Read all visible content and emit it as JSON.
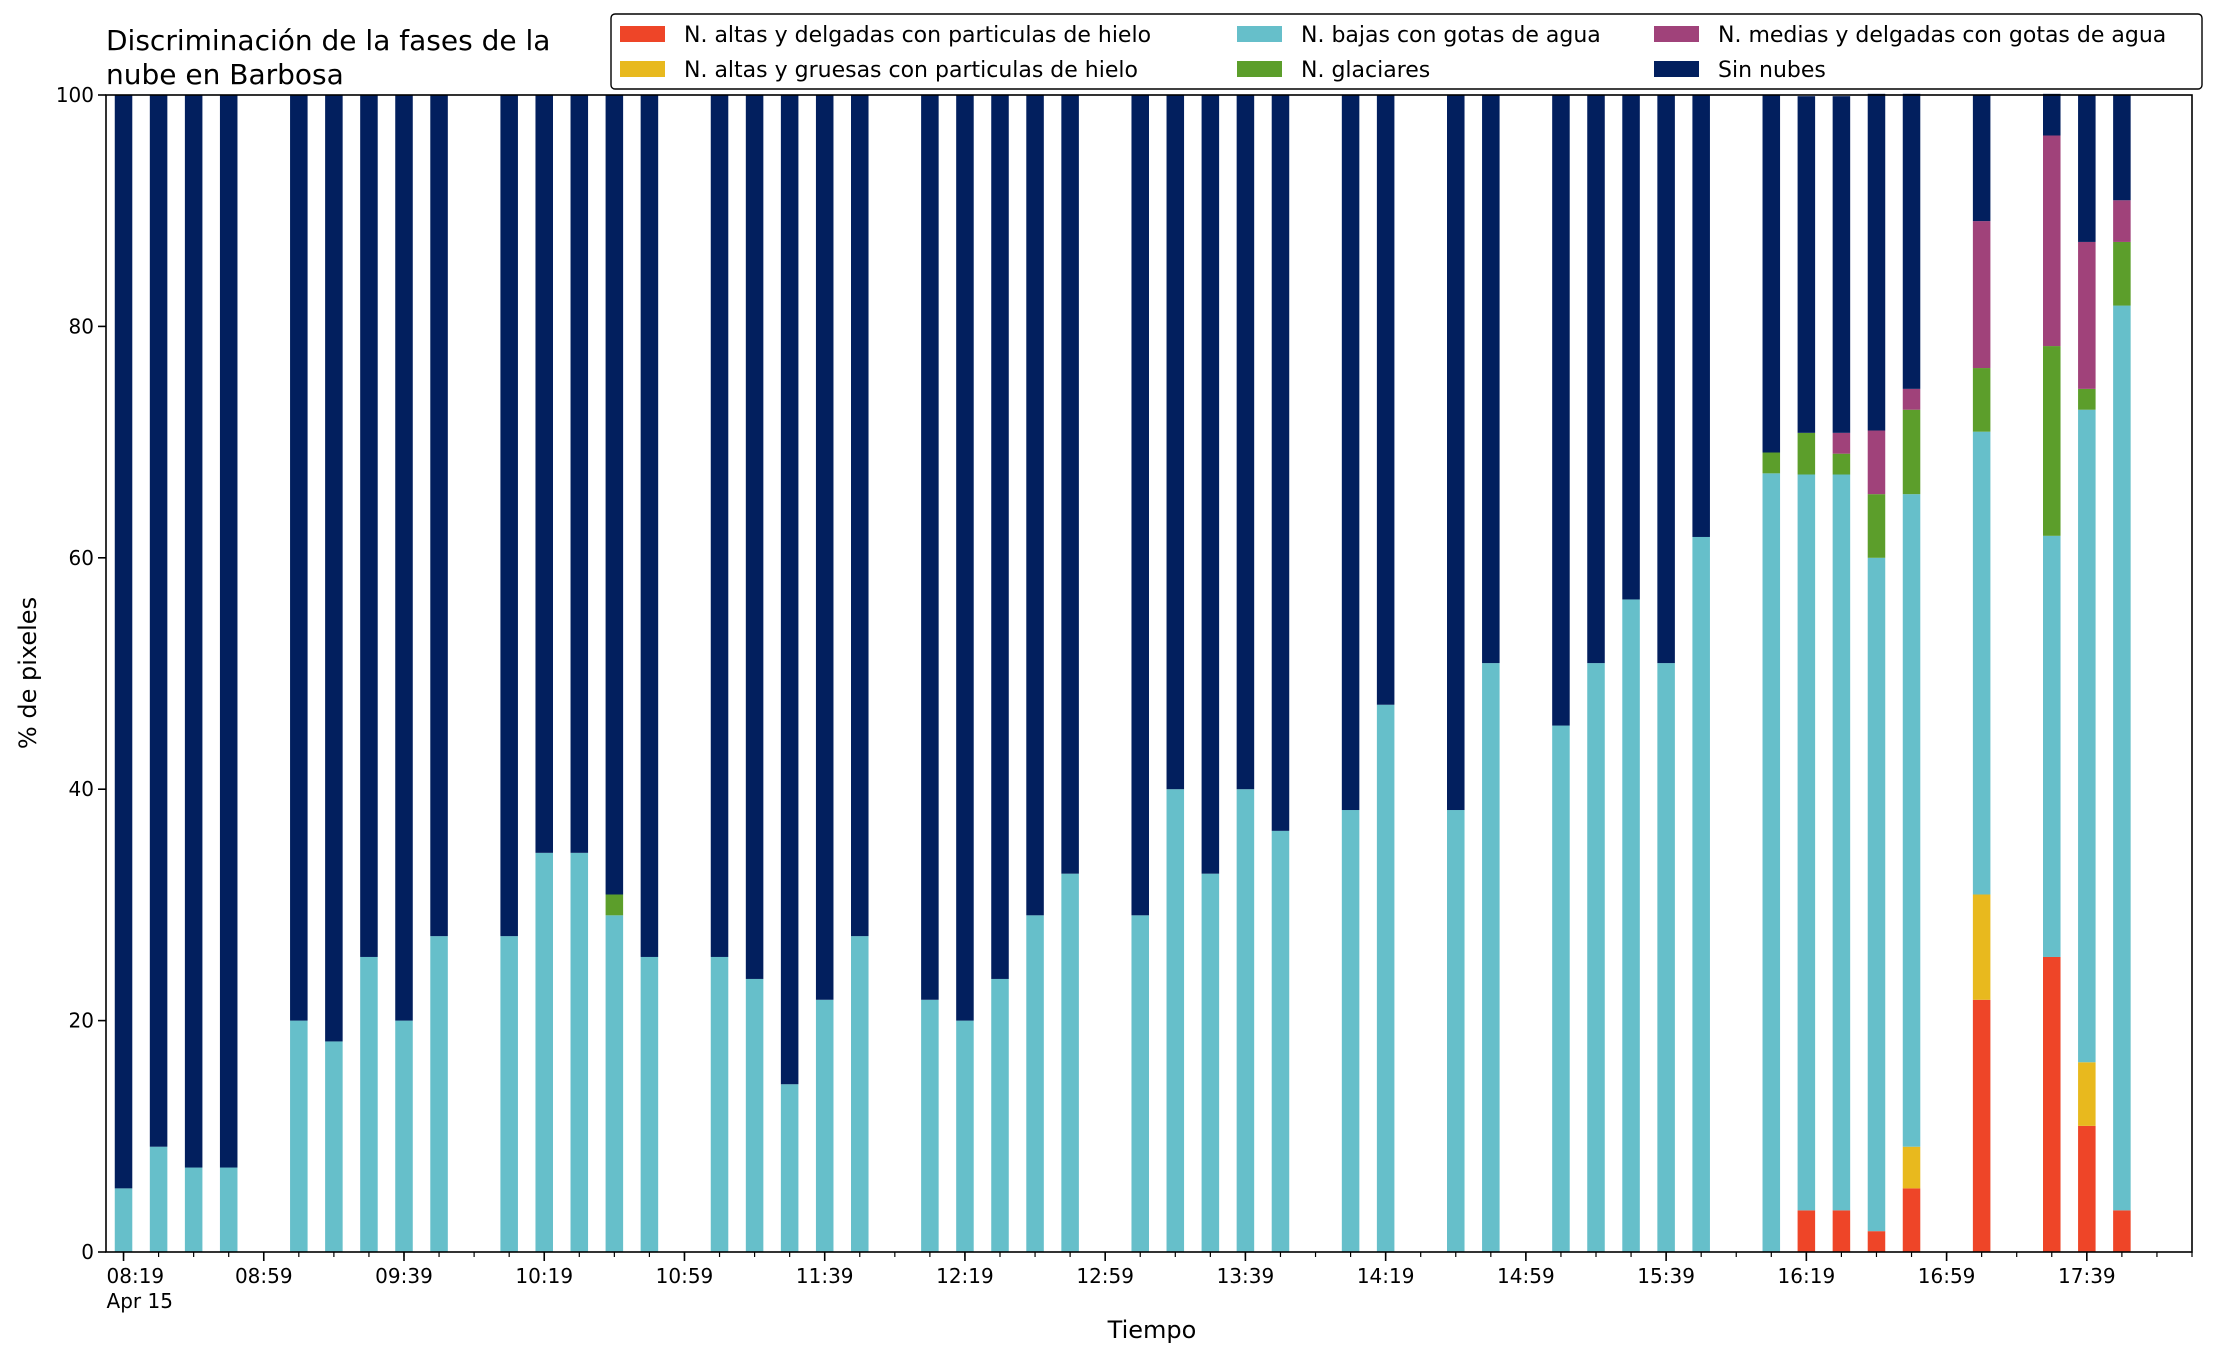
{
  "chart_data": {
    "type": "bar",
    "stacked": true,
    "title_lines": [
      "Discriminación de la fases de la",
      "nube en Barbosa"
    ],
    "xlabel": "Tiempo",
    "ylabel": "% de pixeles",
    "ylim": [
      0,
      100
    ],
    "yticks": [
      "0",
      "20",
      "40",
      "60",
      "80",
      "100"
    ],
    "x_unit": "minutes after 08:19",
    "xlim": [
      -5,
      590
    ],
    "xticks": [
      {
        "t": 0,
        "label": "08:19",
        "sublabel": "Apr 15"
      },
      {
        "t": 40,
        "label": "08:59"
      },
      {
        "t": 80,
        "label": "09:39"
      },
      {
        "t": 120,
        "label": "10:19"
      },
      {
        "t": 160,
        "label": "10:59"
      },
      {
        "t": 200,
        "label": "11:39"
      },
      {
        "t": 240,
        "label": "12:19"
      },
      {
        "t": 280,
        "label": "12:59"
      },
      {
        "t": 320,
        "label": "13:39"
      },
      {
        "t": 360,
        "label": "14:19"
      },
      {
        "t": 400,
        "label": "14:59"
      },
      {
        "t": 440,
        "label": "15:39"
      },
      {
        "t": 480,
        "label": "16:19"
      },
      {
        "t": 520,
        "label": "16:59"
      },
      {
        "t": 560,
        "label": "17:39"
      }
    ],
    "minor_tick_step": 10,
    "bar_width": 5,
    "legend": {
      "placement": "top-right",
      "columns": 3
    },
    "x": [
      0,
      10,
      20,
      30,
      50,
      60,
      70,
      80,
      90,
      110,
      120,
      130,
      140,
      150,
      170,
      180,
      190,
      200,
      210,
      230,
      240,
      250,
      260,
      270,
      290,
      300,
      310,
      320,
      330,
      350,
      360,
      380,
      390,
      410,
      420,
      430,
      440,
      450,
      470,
      480,
      490,
      500,
      510,
      530,
      550,
      560,
      570
    ],
    "series": [
      {
        "name": "N. altas y delgadas con particulas de hielo",
        "color": "#ee4528",
        "values": [
          0,
          0,
          0,
          0,
          0,
          0,
          0,
          0,
          0,
          0,
          0,
          0,
          0,
          0,
          0,
          0,
          0,
          0,
          0,
          0,
          0,
          0,
          0,
          0,
          0,
          0,
          0,
          0,
          0,
          0,
          0,
          0,
          0,
          0,
          0,
          0,
          0,
          0,
          0,
          3.6,
          3.6,
          1.8,
          5.5,
          21.8,
          25.5,
          10.9,
          3.6
        ]
      },
      {
        "name": "N. altas y gruesas con particulas de hielo",
        "color": "#e8b91e",
        "values": [
          0,
          0,
          0,
          0,
          0,
          0,
          0,
          0,
          0,
          0,
          0,
          0,
          0,
          0,
          0,
          0,
          0,
          0,
          0,
          0,
          0,
          0,
          0,
          0,
          0,
          0,
          0,
          0,
          0,
          0,
          0,
          0,
          0,
          0,
          0,
          0,
          0,
          0,
          0,
          0,
          0,
          0,
          3.6,
          9.1,
          0,
          5.5,
          0
        ]
      },
      {
        "name": "N. bajas con gotas de agua",
        "color": "#66bfca",
        "values": [
          5.5,
          9.1,
          7.3,
          7.3,
          20,
          18.2,
          25.5,
          20,
          27.3,
          27.3,
          34.5,
          34.5,
          29.1,
          25.5,
          25.5,
          23.6,
          14.5,
          21.8,
          27.3,
          21.8,
          20,
          23.6,
          29.1,
          32.7,
          29.1,
          40,
          32.7,
          40,
          36.4,
          38.2,
          47.3,
          38.2,
          50.9,
          45.5,
          50.9,
          56.4,
          50.9,
          61.8,
          67.3,
          63.6,
          63.6,
          58.2,
          56.4,
          40,
          36.4,
          56.4,
          78.2
        ]
      },
      {
        "name": "N. glaciares",
        "color": "#5c9e2b",
        "values": [
          0,
          0,
          0,
          0,
          0,
          0,
          0,
          0,
          0,
          0,
          0,
          0,
          1.8,
          0,
          0,
          0,
          0,
          0,
          0,
          0,
          0,
          0,
          0,
          0,
          0,
          0,
          0,
          0,
          0,
          0,
          0,
          0,
          0,
          0,
          0,
          0,
          0,
          0,
          1.8,
          3.6,
          1.8,
          5.5,
          7.3,
          5.5,
          16.4,
          1.8,
          5.5
        ]
      },
      {
        "name": "N. medias y delgadas con gotas de agua",
        "color": "#a0427a",
        "values": [
          0,
          0,
          0,
          0,
          0,
          0,
          0,
          0,
          0,
          0,
          0,
          0,
          0,
          0,
          0,
          0,
          0,
          0,
          0,
          0,
          0,
          0,
          0,
          0,
          0,
          0,
          0,
          0,
          0,
          0,
          0,
          0,
          0,
          0,
          0,
          0,
          0,
          0,
          0,
          0,
          1.8,
          5.5,
          1.8,
          12.7,
          18.2,
          12.7,
          3.6
        ]
      },
      {
        "name": "Sin nubes",
        "color": "#021f5e",
        "values": [
          94.5,
          90.9,
          92.7,
          92.7,
          80,
          81.8,
          74.5,
          80,
          72.7,
          72.7,
          65.5,
          65.5,
          69.1,
          74.5,
          74.5,
          76.4,
          85.5,
          78.2,
          72.7,
          78.2,
          80,
          76.4,
          70.9,
          67.3,
          70.9,
          60,
          67.3,
          60,
          63.6,
          61.8,
          52.7,
          61.8,
          49.1,
          54.5,
          49.1,
          43.6,
          49.1,
          38.2,
          30.9,
          29.1,
          29.1,
          29.1,
          25.5,
          10.9,
          3.6,
          12.7,
          9.1
        ]
      }
    ]
  }
}
